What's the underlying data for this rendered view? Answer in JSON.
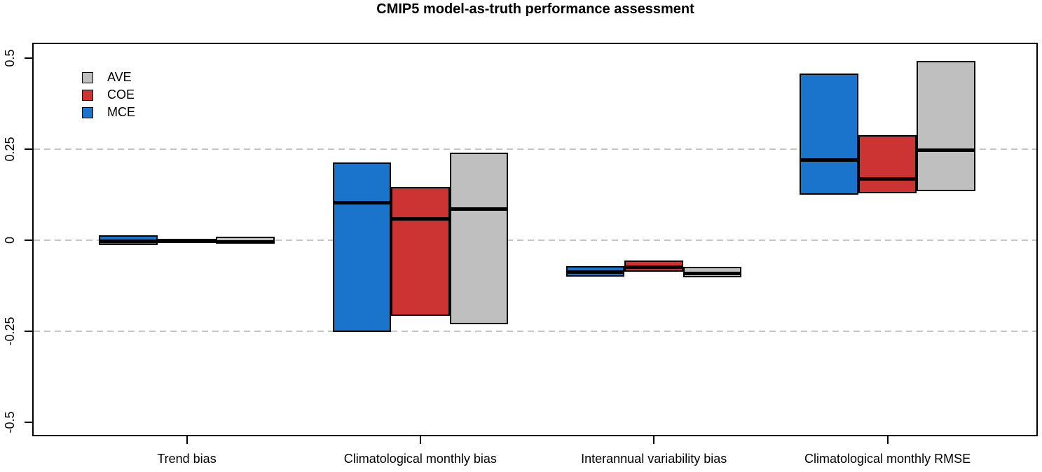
{
  "chart_data": {
    "type": "bar",
    "variant": "grouped floating boxes (high / median / low), R-style plot",
    "title": "CMIP5 model-as-truth performance assessment",
    "xlabel": "",
    "ylabel": "",
    "categories": [
      "Trend bias",
      "Climatological monthly bias",
      "Interannual variability bias",
      "Climatological monthly RMSE"
    ],
    "y_axis": {
      "range": [
        -0.54,
        0.54
      ],
      "ticks": [
        0.5,
        0.25,
        0,
        -0.25,
        -0.5
      ],
      "tick_labels": [
        "0.5",
        "0.25",
        "0",
        "-0.25",
        "-0.5"
      ],
      "gridlines": [
        0.25,
        0,
        -0.25
      ],
      "gridline_style": "dashed",
      "gridline_color": "#c6c6c6"
    },
    "legend_position": "top-left",
    "legend": [
      {
        "label": "AVE",
        "color": "#BFBFBF"
      },
      {
        "label": "COE",
        "color": "#CC3333"
      },
      {
        "label": "MCE",
        "color": "#1B74CC"
      }
    ],
    "series": [
      {
        "name": "MCE",
        "color": "#1B74CC",
        "boxes": [
          {
            "high": 0.012,
            "median": 0.0,
            "low": -0.015
          },
          {
            "high": 0.212,
            "median": 0.105,
            "low": -0.253
          },
          {
            "high": -0.072,
            "median": -0.084,
            "low": -0.101
          },
          {
            "high": 0.456,
            "median": 0.224,
            "low": 0.124
          }
        ]
      },
      {
        "name": "COE",
        "color": "#CC3333",
        "boxes": [
          {
            "high": 0.003,
            "median": 0.0,
            "low": -0.003
          },
          {
            "high": 0.145,
            "median": 0.062,
            "low": -0.209
          },
          {
            "high": -0.057,
            "median": -0.072,
            "low": -0.088
          },
          {
            "high": 0.287,
            "median": 0.172,
            "low": 0.128
          }
        ]
      },
      {
        "name": "AVE",
        "color": "#BFBFBF",
        "boxes": [
          {
            "high": 0.009,
            "median": -0.001,
            "low": -0.011
          },
          {
            "high": 0.239,
            "median": 0.089,
            "low": -0.232
          },
          {
            "high": -0.074,
            "median": -0.088,
            "low": -0.103
          },
          {
            "high": 0.491,
            "median": 0.25,
            "low": 0.134
          }
        ]
      }
    ]
  }
}
